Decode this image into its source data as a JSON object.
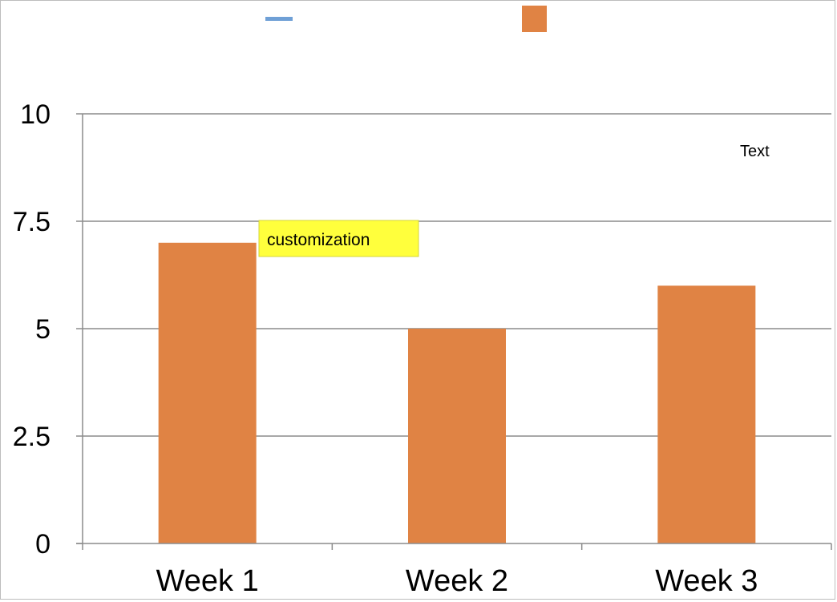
{
  "chart_data": {
    "type": "bar",
    "categories": [
      "Week 1",
      "Week 2",
      "Week 3"
    ],
    "series": [
      {
        "values": [
          7,
          5,
          6
        ],
        "color": "#e08344"
      }
    ],
    "legend": {
      "placement": "top",
      "entries": [
        {
          "marker": "line",
          "color": "#6fa0d6"
        },
        {
          "marker": "square",
          "color": "#e08344"
        }
      ]
    },
    "ylim": [
      0,
      10
    ],
    "yticks": [
      "0",
      "2.5",
      "5",
      "7.5",
      "10"
    ],
    "grid": true,
    "annotations": [
      {
        "text": "customization",
        "style": "highlight",
        "background": "#ffff3c",
        "anchor": "Week 1"
      },
      {
        "text": "Text",
        "style": "plain"
      }
    ]
  }
}
